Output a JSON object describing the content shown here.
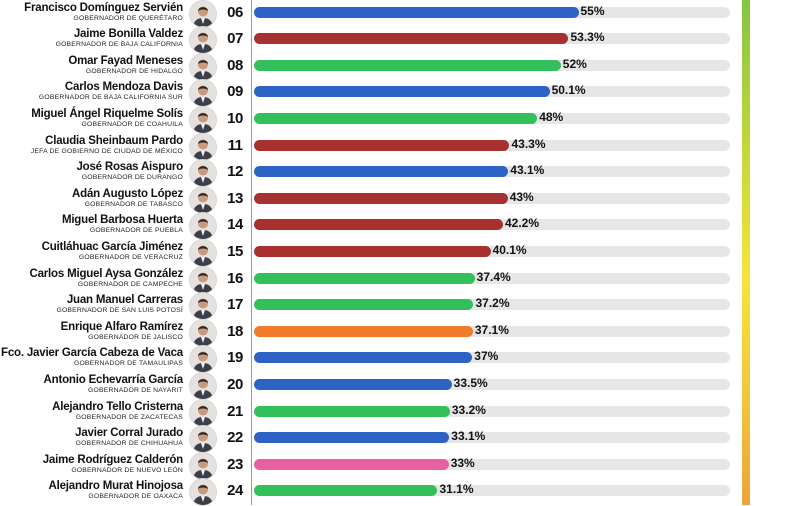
{
  "chart_data": {
    "type": "bar",
    "orientation": "horizontal",
    "xlim": [
      0,
      100
    ],
    "rows": [
      {
        "rank": "06",
        "name": "Francisco Domínguez Servién",
        "role": "GOBERNADOR DE QUERÉTARO",
        "value": 55,
        "label": "55%",
        "color": "#2e63c6"
      },
      {
        "rank": "07",
        "name": "Jaime Bonilla Valdez",
        "role": "GOBERNADOR DE BAJA CALIFORNIA",
        "value": 53.3,
        "label": "53.3%",
        "color": "#a8302f"
      },
      {
        "rank": "08",
        "name": "Omar Fayad Meneses",
        "role": "GOBERNADOR DE HIDALGO",
        "value": 52,
        "label": "52%",
        "color": "#33c05a"
      },
      {
        "rank": "09",
        "name": "Carlos Mendoza Davis",
        "role": "GOBERNADOR DE BAJA CALIFORNIA SUR",
        "value": 50.1,
        "label": "50.1%",
        "color": "#2e63c6"
      },
      {
        "rank": "10",
        "name": "Miguel Ángel Riquelme Solís",
        "role": "GOBERNADOR DE COAHUILA",
        "value": 48,
        "label": "48%",
        "color": "#33c05a"
      },
      {
        "rank": "11",
        "name": "Claudia Sheinbaum Pardo",
        "role": "JEFA DE GOBIERNO DE CIUDAD DE MÉXICO",
        "value": 43.3,
        "label": "43.3%",
        "color": "#a8302f"
      },
      {
        "rank": "12",
        "name": "José Rosas Aispuro",
        "role": "GOBERNADOR DE DURANGO",
        "value": 43.1,
        "label": "43.1%",
        "color": "#2e63c6"
      },
      {
        "rank": "13",
        "name": "Adán Augusto López",
        "role": "GOBERNADOR DE TABASCO",
        "value": 43,
        "label": "43%",
        "color": "#a8302f"
      },
      {
        "rank": "14",
        "name": "Miguel Barbosa Huerta",
        "role": "GOBERNADOR DE PUEBLA",
        "value": 42.2,
        "label": "42.2%",
        "color": "#a8302f"
      },
      {
        "rank": "15",
        "name": "Cuitláhuac García Jiménez",
        "role": "GOBERNADOR DE VERACRUZ",
        "value": 40.1,
        "label": "40.1%",
        "color": "#a8302f"
      },
      {
        "rank": "16",
        "name": "Carlos Miguel Aysa González",
        "role": "GOBERNADOR DE CAMPECHE",
        "value": 37.4,
        "label": "37.4%",
        "color": "#33c05a"
      },
      {
        "rank": "17",
        "name": "Juan Manuel Carreras",
        "role": "GOBERNADOR DE SAN LUIS POTOSÍ",
        "value": 37.2,
        "label": "37.2%",
        "color": "#33c05a"
      },
      {
        "rank": "18",
        "name": "Enrique Alfaro Ramírez",
        "role": "GOBERNADOR DE JALISCO",
        "value": 37.1,
        "label": "37.1%",
        "color": "#f07b2a"
      },
      {
        "rank": "19",
        "name": "Fco. Javier García Cabeza de Vaca",
        "role": "GOBERNADOR DE TAMAULIPAS",
        "value": 37,
        "label": "37%",
        "color": "#2e63c6"
      },
      {
        "rank": "20",
        "name": "Antonio Echevarría García",
        "role": "GOBERNADOR DE NAYARIT",
        "value": 33.5,
        "label": "33.5%",
        "color": "#2e63c6"
      },
      {
        "rank": "21",
        "name": "Alejandro Tello Cristerna",
        "role": "GOBERNADOR DE ZACATECAS",
        "value": 33.2,
        "label": "33.2%",
        "color": "#33c05a"
      },
      {
        "rank": "22",
        "name": "Javier Corral Jurado",
        "role": "GOBERNADOR DE CHIHUAHUA",
        "value": 33.1,
        "label": "33.1%",
        "color": "#2e63c6"
      },
      {
        "rank": "23",
        "name": "Jaime Rodríguez Calderón",
        "role": "GOBERNADOR DE NUEVO LEÓN",
        "value": 33,
        "label": "33%",
        "color": "#e8609f"
      },
      {
        "rank": "24",
        "name": "Alejandro Murat Hinojosa",
        "role": "GOBERNADOR DE OAXACA",
        "value": 31.1,
        "label": "31.1%",
        "color": "#33c05a"
      }
    ],
    "title": "",
    "xlabel": "",
    "ylabel": "",
    "grid": false,
    "legend": "none",
    "track_color": "#e6e6e6"
  }
}
